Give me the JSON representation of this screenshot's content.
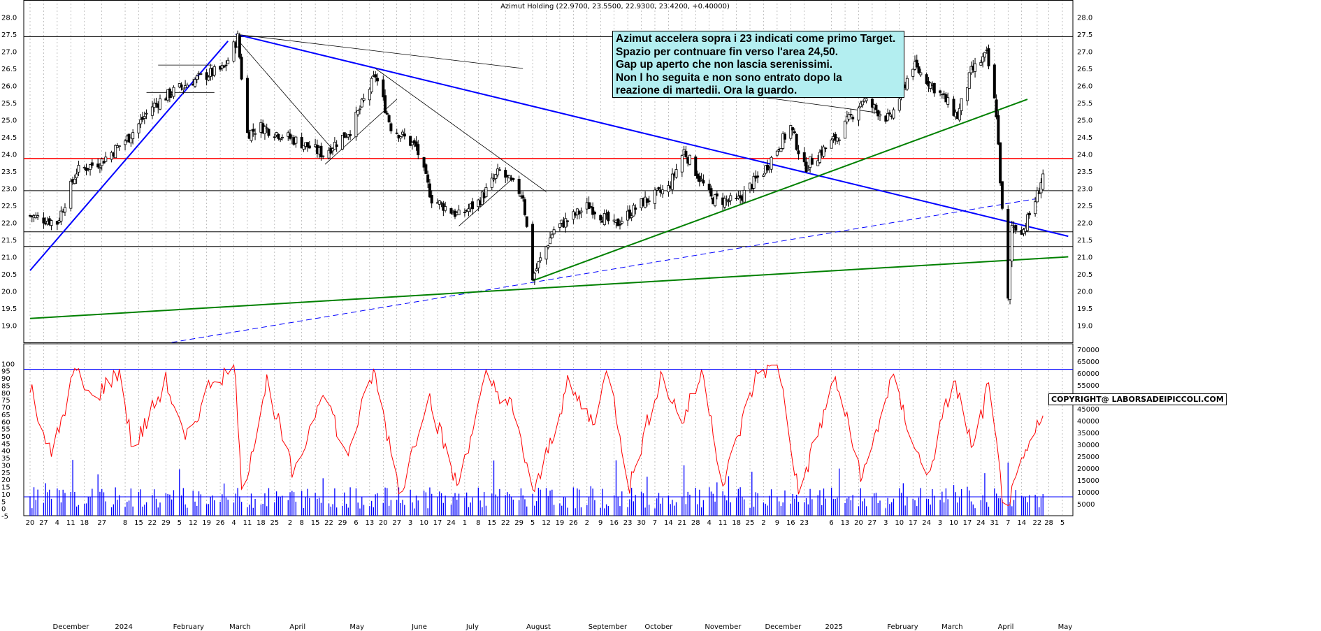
{
  "title": "Azimut Holding (22.9700, 23.5500, 22.9300, 23.4200, +0.40000)",
  "annotation": {
    "lines": [
      "Azimut accelera sopra i 23 indicati come primo Target.",
      "Spazio per contnuare fin verso l'area 24,50.",
      "Gap up aperto che non lascia serenissimi.",
      "Non l ho seguita e non sono entrato dopo la",
      "reazione di martedii. Ora la guardo."
    ],
    "background": "#b3eef0"
  },
  "copyright": "COPYRIGHT@ LABORSADEIPICCOLI.COM",
  "colors": {
    "price": "#000000",
    "oscillator": "#ff0000",
    "volume": "#0000ff",
    "support": "#ff0000",
    "downtrend": "#0000ff",
    "uptrend": "#008000",
    "grid": "#999999"
  },
  "chart_data": [
    {
      "type": "candlestick",
      "ylim": [
        18.5,
        28.5
      ],
      "yticks": [
        "28.0",
        "27.5",
        "27.0",
        "26.5",
        "26.0",
        "25.5",
        "25.0",
        "24.5",
        "24.0",
        "23.5",
        "23.0",
        "22.5",
        "22.0",
        "21.5",
        "21.0",
        "20.5",
        "20.0",
        "19.5",
        "19.0"
      ],
      "horizontal_levels": [
        {
          "value": 27.43,
          "color": "#000000"
        },
        {
          "value": 23.87,
          "color": "#ff0000"
        },
        {
          "value": 22.93,
          "color": "#000000"
        },
        {
          "value": 21.73,
          "color": "#000000"
        },
        {
          "value": 21.3,
          "color": "#000000"
        }
      ],
      "last": {
        "open": 22.97,
        "high": 23.55,
        "low": 22.93,
        "close": 23.42,
        "change": 0.4
      },
      "path_points": [
        [
          "2023-11-20",
          22.2
        ],
        [
          "2023-12-04",
          22.0
        ],
        [
          "2023-12-14",
          23.5
        ],
        [
          "2023-12-27",
          23.8
        ],
        [
          "2024-01-10",
          24.5
        ],
        [
          "2024-01-22",
          25.4
        ],
        [
          "2024-02-01",
          25.8
        ],
        [
          "2024-02-14",
          26.2
        ],
        [
          "2024-02-28",
          26.5
        ],
        [
          "2024-03-06",
          27.4
        ],
        [
          "2024-03-11",
          24.6
        ],
        [
          "2024-03-18",
          24.8
        ],
        [
          "2024-04-05",
          24.4
        ],
        [
          "2024-04-19",
          24.0
        ],
        [
          "2024-05-03",
          24.7
        ],
        [
          "2024-05-16",
          26.3
        ],
        [
          "2024-05-24",
          24.8
        ],
        [
          "2024-06-06",
          24.2
        ],
        [
          "2024-06-14",
          22.7
        ],
        [
          "2024-06-28",
          22.2
        ],
        [
          "2024-07-08",
          22.6
        ],
        [
          "2024-07-19",
          23.5
        ],
        [
          "2024-07-31",
          22.8
        ],
        [
          "2024-08-05",
          20.4
        ],
        [
          "2024-08-16",
          21.8
        ],
        [
          "2024-09-03",
          22.5
        ],
        [
          "2024-09-16",
          21.9
        ],
        [
          "2024-10-01",
          22.6
        ],
        [
          "2024-10-14",
          23.0
        ],
        [
          "2024-10-22",
          24.1
        ],
        [
          "2024-11-05",
          22.7
        ],
        [
          "2024-11-18",
          22.6
        ],
        [
          "2024-12-02",
          23.5
        ],
        [
          "2024-12-16",
          24.8
        ],
        [
          "2024-12-23",
          23.6
        ],
        [
          "2025-01-09",
          24.5
        ],
        [
          "2025-01-22",
          25.6
        ],
        [
          "2025-02-05",
          25.0
        ],
        [
          "2025-02-17",
          26.6
        ],
        [
          "2025-03-04",
          25.7
        ],
        [
          "2025-03-12",
          25.1
        ],
        [
          "2025-03-19",
          26.4
        ],
        [
          "2025-03-27",
          26.9
        ],
        [
          "2025-04-01",
          25.2
        ],
        [
          "2025-04-04",
          22.3
        ],
        [
          "2025-04-07",
          19.7
        ],
        [
          "2025-04-09",
          21.9
        ],
        [
          "2025-04-15",
          21.8
        ],
        [
          "2025-04-22",
          22.8
        ],
        [
          "2025-04-25",
          23.42
        ]
      ]
    },
    {
      "type": "line+bar",
      "series": [
        {
          "kind": "oscillator",
          "ylim": [
            -5,
            105
          ],
          "yticks": [
            "100",
            "95",
            "90",
            "85",
            "80",
            "75",
            "70",
            "65",
            "60",
            "55",
            "50",
            "45",
            "40",
            "35",
            "30",
            "25",
            "20",
            "15",
            "10",
            "5",
            "0",
            "-5"
          ],
          "reference_levels": [
            96,
            8
          ]
        },
        {
          "kind": "volume",
          "ylim": [
            0,
            70000
          ],
          "yticks": [
            "70000",
            "65000",
            "60000",
            "55000",
            "50000",
            "45000",
            "40000",
            "35000",
            "30000",
            "25000",
            "20000",
            "15000",
            "10000",
            "5000"
          ]
        }
      ],
      "oscillator_points": [
        [
          "2023-11-20",
          85
        ],
        [
          "2023-12-01",
          35
        ],
        [
          "2023-12-13",
          95
        ],
        [
          "2023-12-22",
          75
        ],
        [
          "2024-01-05",
          95
        ],
        [
          "2024-01-12",
          40
        ],
        [
          "2024-01-29",
          88
        ],
        [
          "2024-02-08",
          45
        ],
        [
          "2024-02-22",
          90
        ],
        [
          "2024-03-05",
          95
        ],
        [
          "2024-03-08",
          8
        ],
        [
          "2024-03-21",
          88
        ],
        [
          "2024-04-04",
          20
        ],
        [
          "2024-04-19",
          85
        ],
        [
          "2024-05-01",
          35
        ],
        [
          "2024-05-15",
          95
        ],
        [
          "2024-05-29",
          10
        ],
        [
          "2024-06-12",
          80
        ],
        [
          "2024-06-27",
          15
        ],
        [
          "2024-07-12",
          90
        ],
        [
          "2024-07-25",
          70
        ],
        [
          "2024-08-06",
          10
        ],
        [
          "2024-08-23",
          85
        ],
        [
          "2024-09-05",
          60
        ],
        [
          "2024-09-13",
          96
        ],
        [
          "2024-09-24",
          15
        ],
        [
          "2024-10-10",
          92
        ],
        [
          "2024-10-21",
          60
        ],
        [
          "2024-11-01",
          95
        ],
        [
          "2024-11-11",
          15
        ],
        [
          "2024-11-29",
          95
        ],
        [
          "2024-12-10",
          97
        ],
        [
          "2024-12-20",
          10
        ],
        [
          "2025-01-08",
          90
        ],
        [
          "2025-01-22",
          20
        ],
        [
          "2025-02-06",
          90
        ],
        [
          "2025-02-24",
          20
        ],
        [
          "2025-03-10",
          90
        ],
        [
          "2025-03-20",
          40
        ],
        [
          "2025-03-28",
          85
        ],
        [
          "2025-04-04",
          10
        ],
        [
          "2025-04-08",
          5
        ],
        [
          "2025-04-17",
          40
        ],
        [
          "2025-04-24",
          60
        ]
      ]
    }
  ],
  "x_axis": {
    "days": [
      {
        "d": "2023-11-20",
        "t": "20"
      },
      {
        "d": "2023-11-27",
        "t": "27"
      },
      {
        "d": "2023-12-04",
        "t": "4"
      },
      {
        "d": "2023-12-11",
        "t": "11"
      },
      {
        "d": "2023-12-18",
        "t": "18"
      },
      {
        "d": "2023-12-27",
        "t": "27"
      },
      {
        "d": "2024-01-08",
        "t": "8"
      },
      {
        "d": "2024-01-15",
        "t": "15"
      },
      {
        "d": "2024-01-22",
        "t": "22"
      },
      {
        "d": "2024-01-29",
        "t": "29"
      },
      {
        "d": "2024-02-05",
        "t": "5"
      },
      {
        "d": "2024-02-12",
        "t": "12"
      },
      {
        "d": "2024-02-19",
        "t": "19"
      },
      {
        "d": "2024-02-26",
        "t": "26"
      },
      {
        "d": "2024-03-04",
        "t": "4"
      },
      {
        "d": "2024-03-11",
        "t": "11"
      },
      {
        "d": "2024-03-18",
        "t": "18"
      },
      {
        "d": "2024-03-25",
        "t": "25"
      },
      {
        "d": "2024-04-02",
        "t": "2"
      },
      {
        "d": "2024-04-08",
        "t": "8"
      },
      {
        "d": "2024-04-15",
        "t": "15"
      },
      {
        "d": "2024-04-22",
        "t": "22"
      },
      {
        "d": "2024-04-29",
        "t": "29"
      },
      {
        "d": "2024-05-06",
        "t": "6"
      },
      {
        "d": "2024-05-13",
        "t": "13"
      },
      {
        "d": "2024-05-20",
        "t": "20"
      },
      {
        "d": "2024-05-27",
        "t": "27"
      },
      {
        "d": "2024-06-03",
        "t": "3"
      },
      {
        "d": "2024-06-10",
        "t": "10"
      },
      {
        "d": "2024-06-17",
        "t": "17"
      },
      {
        "d": "2024-06-24",
        "t": "24"
      },
      {
        "d": "2024-07-01",
        "t": "1"
      },
      {
        "d": "2024-07-08",
        "t": "8"
      },
      {
        "d": "2024-07-15",
        "t": "15"
      },
      {
        "d": "2024-07-22",
        "t": "22"
      },
      {
        "d": "2024-07-29",
        "t": "29"
      },
      {
        "d": "2024-08-05",
        "t": "5"
      },
      {
        "d": "2024-08-12",
        "t": "12"
      },
      {
        "d": "2024-08-19",
        "t": "19"
      },
      {
        "d": "2024-08-26",
        "t": "26"
      },
      {
        "d": "2024-09-02",
        "t": "2"
      },
      {
        "d": "2024-09-09",
        "t": "9"
      },
      {
        "d": "2024-09-16",
        "t": "16"
      },
      {
        "d": "2024-09-23",
        "t": "23"
      },
      {
        "d": "2024-09-30",
        "t": "30"
      },
      {
        "d": "2024-10-07",
        "t": "7"
      },
      {
        "d": "2024-10-14",
        "t": "14"
      },
      {
        "d": "2024-10-21",
        "t": "21"
      },
      {
        "d": "2024-10-28",
        "t": "28"
      },
      {
        "d": "2024-11-04",
        "t": "4"
      },
      {
        "d": "2024-11-11",
        "t": "11"
      },
      {
        "d": "2024-11-18",
        "t": "18"
      },
      {
        "d": "2024-11-25",
        "t": "25"
      },
      {
        "d": "2024-12-02",
        "t": "2"
      },
      {
        "d": "2024-12-09",
        "t": "9"
      },
      {
        "d": "2024-12-16",
        "t": "16"
      },
      {
        "d": "2024-12-23",
        "t": "23"
      },
      {
        "d": "2025-01-06",
        "t": "6"
      },
      {
        "d": "2025-01-13",
        "t": "13"
      },
      {
        "d": "2025-01-20",
        "t": "20"
      },
      {
        "d": "2025-01-27",
        "t": "27"
      },
      {
        "d": "2025-02-03",
        "t": "3"
      },
      {
        "d": "2025-02-10",
        "t": "10"
      },
      {
        "d": "2025-02-17",
        "t": "17"
      },
      {
        "d": "2025-02-24",
        "t": "24"
      },
      {
        "d": "2025-03-03",
        "t": "3"
      },
      {
        "d": "2025-03-10",
        "t": "10"
      },
      {
        "d": "2025-03-17",
        "t": "17"
      },
      {
        "d": "2025-03-24",
        "t": "24"
      },
      {
        "d": "2025-03-31",
        "t": "31"
      },
      {
        "d": "2025-04-07",
        "t": "7"
      },
      {
        "d": "2025-04-14",
        "t": "14"
      },
      {
        "d": "2025-04-22",
        "t": "22"
      },
      {
        "d": "2025-04-28",
        "t": "28"
      },
      {
        "d": "2025-05-05",
        "t": "5"
      }
    ],
    "months": [
      {
        "d": "2023-12-01",
        "t": "December"
      },
      {
        "d": "2024-01-02",
        "t": "2024"
      },
      {
        "d": "2024-02-01",
        "t": "February"
      },
      {
        "d": "2024-03-01",
        "t": "March"
      },
      {
        "d": "2024-04-01",
        "t": "April"
      },
      {
        "d": "2024-05-02",
        "t": "May"
      },
      {
        "d": "2024-06-03",
        "t": "June"
      },
      {
        "d": "2024-07-01",
        "t": "July"
      },
      {
        "d": "2024-08-01",
        "t": "August"
      },
      {
        "d": "2024-09-02",
        "t": "September"
      },
      {
        "d": "2024-10-01",
        "t": "October"
      },
      {
        "d": "2024-11-01",
        "t": "November"
      },
      {
        "d": "2024-12-02",
        "t": "December"
      },
      {
        "d": "2025-01-02",
        "t": "2025"
      },
      {
        "d": "2025-02-03",
        "t": "February"
      },
      {
        "d": "2025-03-03",
        "t": "March"
      },
      {
        "d": "2025-04-01",
        "t": "April"
      },
      {
        "d": "2025-05-02",
        "t": "May"
      }
    ]
  },
  "trendlines": [
    {
      "color": "#0000ff",
      "kind": "solid",
      "from": [
        "2023-11-20",
        20.6
      ],
      "to": [
        "2024-03-01",
        27.3
      ]
    },
    {
      "color": "#0000ff",
      "kind": "solid",
      "from": [
        "2024-03-05",
        27.5
      ],
      "to": [
        "2025-05-08",
        21.6
      ]
    },
    {
      "color": "#0000ff",
      "kind": "dashed",
      "from": [
        "2024-02-01",
        18.5
      ],
      "to": [
        "2025-04-22",
        22.7
      ]
    },
    {
      "color": "#008000",
      "kind": "solid",
      "from": [
        "2023-11-20",
        19.2
      ],
      "to": [
        "2025-05-08",
        21.0
      ]
    },
    {
      "color": "#008000",
      "kind": "solid",
      "from": [
        "2024-08-05",
        20.3
      ],
      "to": [
        "2025-04-17",
        25.6
      ]
    },
    {
      "color": "#000000",
      "kind": "thin",
      "from": [
        "2024-03-05",
        27.4
      ],
      "to": [
        "2024-04-23",
        24.2
      ]
    },
    {
      "color": "#000000",
      "kind": "thin",
      "from": [
        "2024-05-16",
        26.5
      ],
      "to": [
        "2024-08-12",
        22.9
      ]
    },
    {
      "color": "#000000",
      "kind": "thin",
      "from": [
        "2024-03-05",
        27.5
      ],
      "to": [
        "2024-07-31",
        26.5
      ]
    },
    {
      "color": "#000000",
      "kind": "thin",
      "from": [
        "2024-10-31",
        25.9
      ],
      "to": [
        "2025-01-31",
        25.2
      ]
    },
    {
      "color": "#000000",
      "kind": "thin",
      "from": [
        "2024-04-20",
        23.7
      ],
      "to": [
        "2024-05-27",
        25.6
      ]
    },
    {
      "color": "#000000",
      "kind": "thin",
      "from": [
        "2024-06-28",
        21.9
      ],
      "to": [
        "2024-07-26",
        23.3
      ]
    },
    {
      "color": "#000000",
      "kind": "thin",
      "from": [
        "2024-01-25",
        26.6
      ],
      "to": [
        "2024-02-22",
        26.6
      ]
    },
    {
      "color": "#000000",
      "kind": "thin",
      "from": [
        "2024-01-19",
        25.8
      ],
      "to": [
        "2024-02-23",
        25.8
      ]
    }
  ]
}
